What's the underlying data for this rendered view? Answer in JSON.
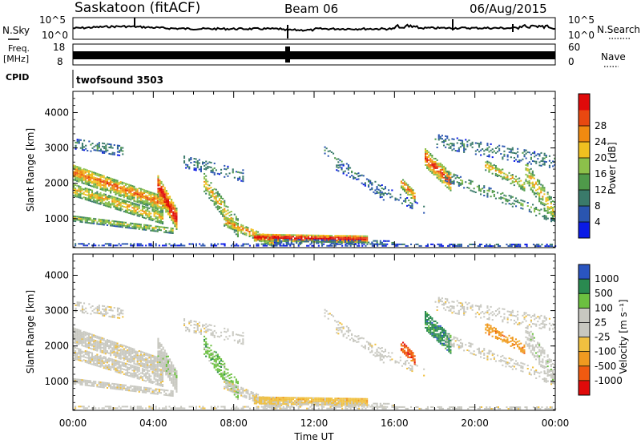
{
  "header": {
    "station": "Saskatoon (fitACF)",
    "beam": "Beam 06",
    "date": "06/Aug/2015"
  },
  "noise_panel": {
    "left_label": "N.Sky",
    "right_label": "N.Search",
    "left_ticks": [
      "10^5",
      "10^0"
    ],
    "right_ticks": [
      "10^5",
      "10^0"
    ]
  },
  "freq_panel": {
    "left_label_1": "Freq.",
    "left_label_2": "[MHz]",
    "right_label": "Nave",
    "left_ticks": [
      "18",
      "8"
    ],
    "right_ticks": [
      "60",
      "0"
    ]
  },
  "cpid_panel": {
    "label": "CPID",
    "program": "twofsound 3503"
  },
  "colors": {
    "power_scale": [
      "#0a1ae6",
      "#2a55b0",
      "#3a7a6a",
      "#4f9a4a",
      "#8cc04a",
      "#f0c020",
      "#f08a10",
      "#e84810",
      "#e00a0a"
    ],
    "velocity_scale": [
      "#e00a0a",
      "#f05a10",
      "#f09a20",
      "#f0c040",
      "#c8c8c0",
      "#c8c8c0",
      "#6cc040",
      "#2a8a50",
      "#2a55c0"
    ]
  },
  "chart_data": [
    {
      "type": "heatmap",
      "title": "Power",
      "ylabel": "Slant Range [km]",
      "xlabel": "Time UT",
      "x_ticks": [
        "00:00",
        "04:00",
        "08:00",
        "12:00",
        "16:00",
        "20:00",
        "00:00"
      ],
      "y_ticks": [
        "1000",
        "2000",
        "3000",
        "4000"
      ],
      "ylim": [
        180,
        4600
      ],
      "colorbar_label": "Power [dB]",
      "colorbar_ticks": [
        "4",
        "8",
        "12",
        "16",
        "20",
        "24",
        "28"
      ]
    },
    {
      "type": "heatmap",
      "title": "Velocity",
      "ylabel": "Slant Range [km]",
      "xlabel": "Time UT",
      "x_ticks": [
        "00:00",
        "04:00",
        "08:00",
        "12:00",
        "16:00",
        "20:00",
        "00:00"
      ],
      "y_ticks": [
        "1000",
        "2000",
        "3000",
        "4000"
      ],
      "ylim": [
        180,
        4600
      ],
      "colorbar_label": "Velocity [m s⁻¹]",
      "colorbar_ticks": [
        "1000",
        "500",
        "100",
        "25",
        "-25",
        "-100",
        "-500",
        "-1000"
      ]
    }
  ]
}
